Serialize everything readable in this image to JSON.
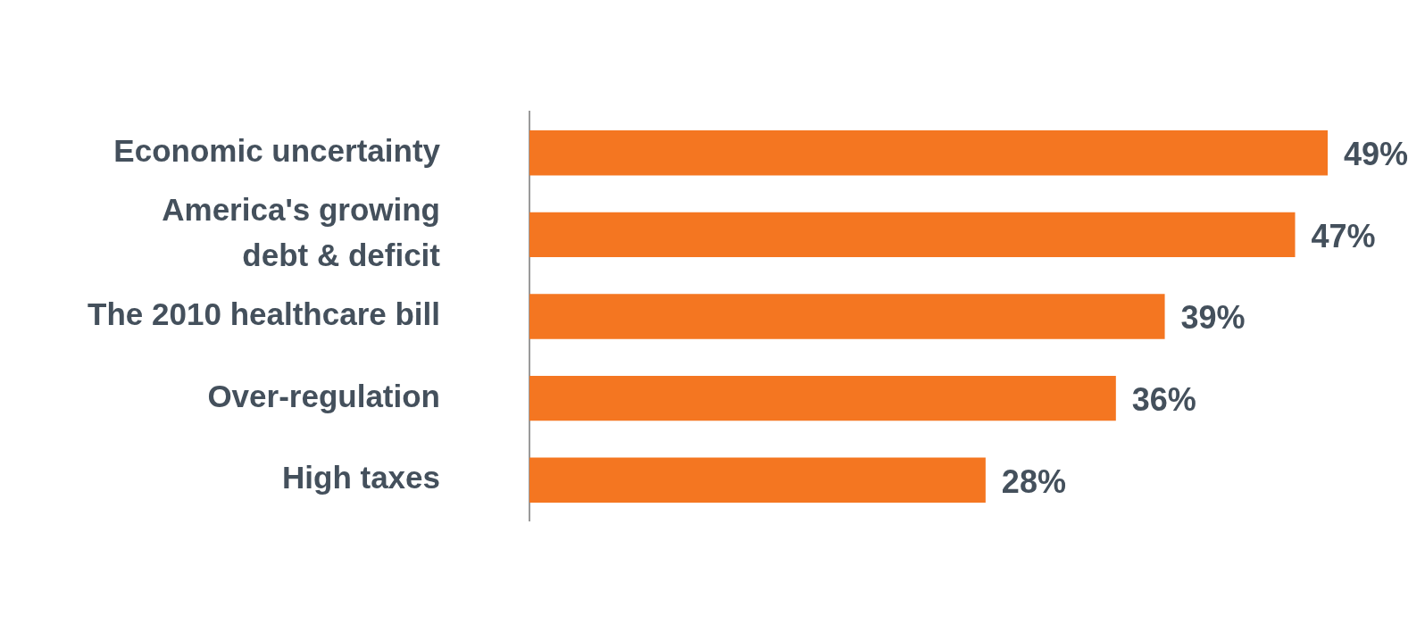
{
  "chart_data": {
    "type": "bar",
    "orientation": "horizontal",
    "categories": [
      "Economic uncertainty",
      "America's growing\ndebt & deficit",
      "The 2010 healthcare bill",
      "Over-regulation",
      "High taxes"
    ],
    "values": [
      49,
      47,
      39,
      36,
      28
    ],
    "value_labels": [
      "49%",
      "47%",
      "39%",
      "36%",
      "28%"
    ],
    "color": "#f47621",
    "xlim": [
      0,
      49
    ],
    "tick_labels": "y",
    "legend": false
  }
}
